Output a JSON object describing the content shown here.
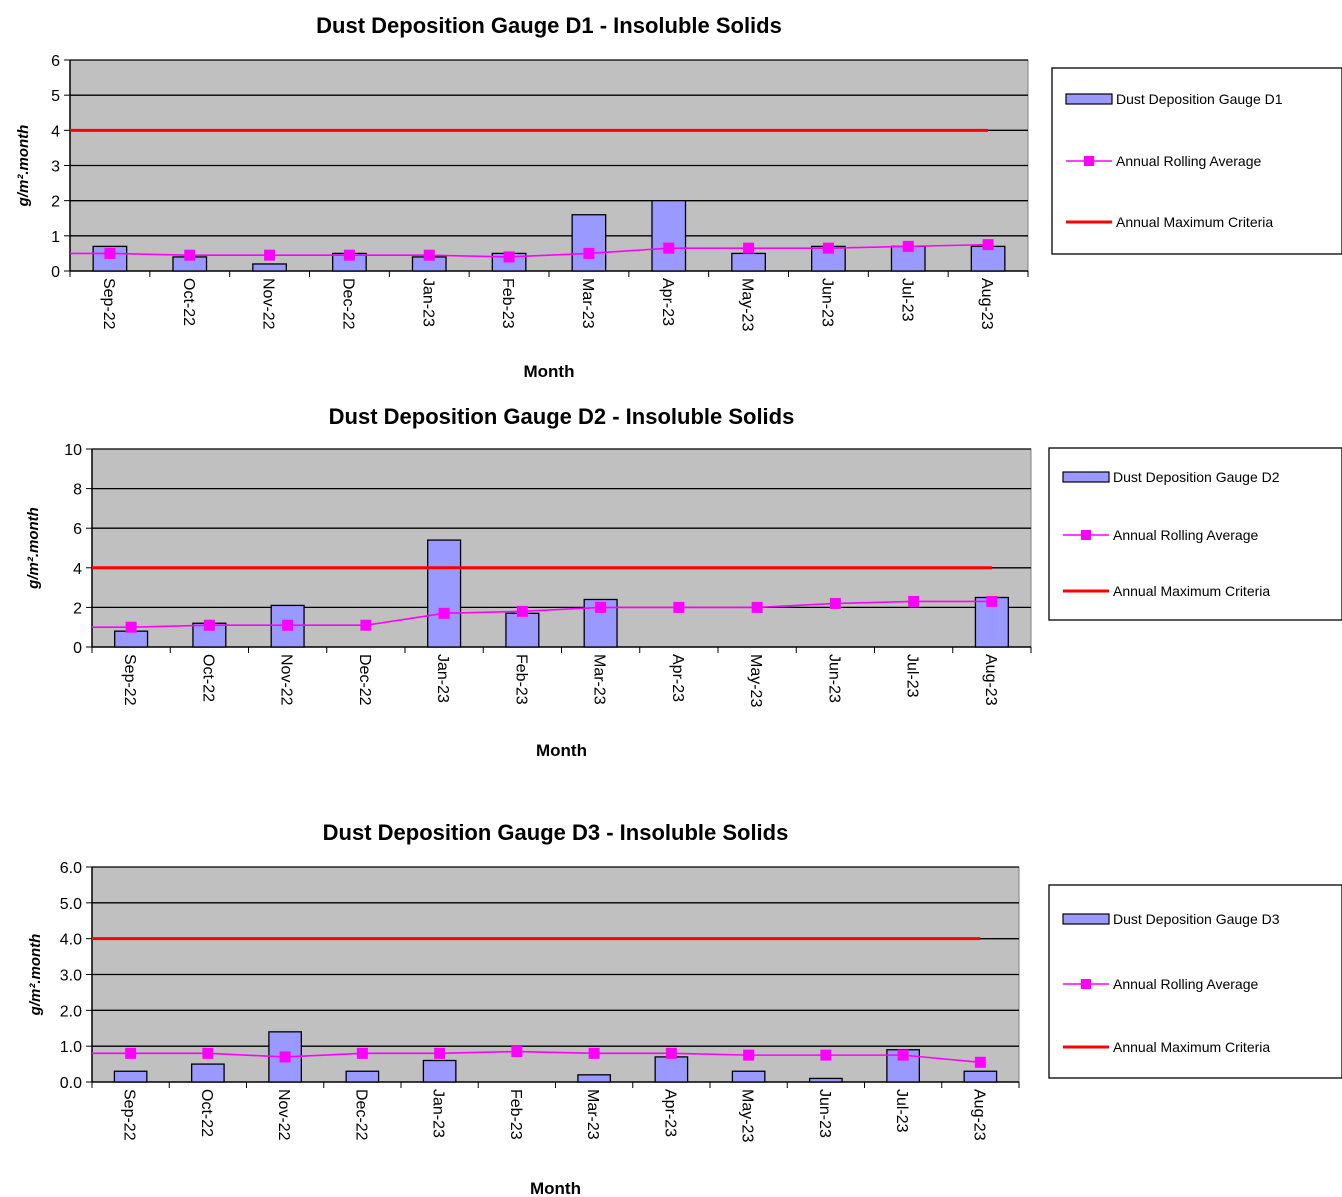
{
  "chart_data": [
    {
      "type": "bar",
      "title": "Dust Deposition Gauge D1 - Insoluble Solids",
      "xlabel": "Month",
      "ylabel": "g/m².month",
      "ylim": [
        0,
        6
      ],
      "yticks": [
        "0",
        "1",
        "2",
        "3",
        "4",
        "5",
        "6"
      ],
      "categories": [
        "Sep-22",
        "Oct-22",
        "Nov-22",
        "Dec-22",
        "Jan-23",
        "Feb-23",
        "Mar-23",
        "Apr-23",
        "May-23",
        "Jun-23",
        "Jul-23",
        "Aug-23"
      ],
      "grid": true,
      "legend_position": "right",
      "series": [
        {
          "name": "Dust Deposition Gauge D1",
          "kind": "bar",
          "color": "#9999ff",
          "values": [
            0.7,
            0.4,
            0.2,
            0.5,
            0.4,
            0.5,
            1.6,
            2.0,
            0.5,
            0.7,
            0.7,
            0.7
          ]
        },
        {
          "name": "Annual Rolling Average",
          "kind": "line-marker",
          "color": "#ff00ff",
          "values": [
            0.5,
            0.45,
            0.45,
            0.45,
            0.45,
            0.4,
            0.5,
            0.65,
            0.65,
            0.65,
            0.7,
            0.75
          ]
        },
        {
          "name": "Annual Maximum Criteria",
          "kind": "line",
          "color": "#ff0000",
          "values": [
            4,
            4,
            4,
            4,
            4,
            4,
            4,
            4,
            4,
            4,
            4,
            4
          ]
        }
      ]
    },
    {
      "type": "bar",
      "title": "Dust Deposition Gauge D2 - Insoluble Solids",
      "xlabel": "Month",
      "ylabel": "g/m².month",
      "ylim": [
        0,
        10
      ],
      "yticks": [
        "0",
        "2",
        "4",
        "6",
        "8",
        "10"
      ],
      "categories": [
        "Sep-22",
        "Oct-22",
        "Nov-22",
        "Dec-22",
        "Jan-23",
        "Feb-23",
        "Mar-23",
        "Apr-23",
        "May-23",
        "Jun-23",
        "Jul-23",
        "Aug-23"
      ],
      "grid": true,
      "legend_position": "right",
      "series": [
        {
          "name": "Dust Deposition Gauge D2",
          "kind": "bar",
          "color": "#9999ff",
          "values": [
            0.8,
            1.2,
            2.1,
            0,
            5.4,
            1.7,
            2.4,
            0,
            0,
            0,
            0,
            2.5
          ]
        },
        {
          "name": "Annual Rolling Average",
          "kind": "line-marker",
          "color": "#ff00ff",
          "values": [
            1.0,
            1.1,
            1.1,
            1.1,
            1.7,
            1.8,
            2.0,
            2.0,
            2.0,
            2.2,
            2.3,
            2.3
          ]
        },
        {
          "name": "Annual Maximum Criteria",
          "kind": "line",
          "color": "#ff0000",
          "values": [
            4,
            4,
            4,
            4,
            4,
            4,
            4,
            4,
            4,
            4,
            4,
            4
          ]
        }
      ]
    },
    {
      "type": "bar",
      "title": "Dust Deposition Gauge D3 - Insoluble Solids",
      "xlabel": "Month",
      "ylabel": "g/m².month",
      "ylim": [
        0,
        6
      ],
      "yticks": [
        "0.0",
        "1.0",
        "2.0",
        "3.0",
        "4.0",
        "5.0",
        "6.0"
      ],
      "categories": [
        "Sep-22",
        "Oct-22",
        "Nov-22",
        "Dec-22",
        "Jan-23",
        "Feb-23",
        "Mar-23",
        "Apr-23",
        "May-23",
        "Jun-23",
        "Jul-23",
        "Aug-23"
      ],
      "grid": true,
      "legend_position": "right",
      "series": [
        {
          "name": "Dust Deposition Gauge D3",
          "kind": "bar",
          "color": "#9999ff",
          "values": [
            0.3,
            0.5,
            1.4,
            0.3,
            0.6,
            0,
            0.2,
            0.7,
            0.3,
            0.1,
            0.9,
            0.3
          ]
        },
        {
          "name": "Annual Rolling Average",
          "kind": "line-marker",
          "color": "#ff00ff",
          "values": [
            0.8,
            0.8,
            0.7,
            0.8,
            0.8,
            0.85,
            0.8,
            0.8,
            0.75,
            0.75,
            0.75,
            0.55
          ]
        },
        {
          "name": "Annual Maximum Criteria",
          "kind": "line",
          "color": "#ff0000",
          "values": [
            4,
            4,
            4,
            4,
            4,
            4,
            4,
            4,
            4,
            4,
            4,
            4
          ]
        }
      ]
    }
  ]
}
